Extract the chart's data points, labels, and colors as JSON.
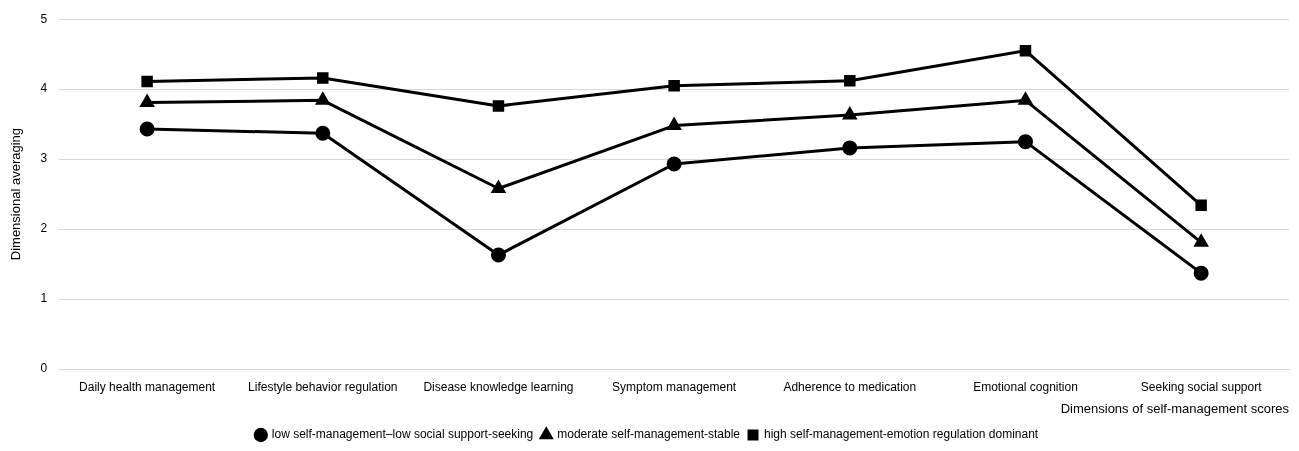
{
  "chart_data": {
    "type": "line",
    "xlabel": "Dimensions of self-management scores",
    "ylabel": "Dimensional averaging",
    "categories": [
      "Daily health management",
      "Lifestyle behavior regulation",
      "Disease knowledge learning",
      "Symptom management",
      "Adherence to medication",
      "Emotional cognition",
      "Seeking social support"
    ],
    "series": [
      {
        "name": "low self-management–low social support-seeking",
        "color": "#000000",
        "marker": "circle",
        "values": [
          3.43,
          3.37,
          1.63,
          2.93,
          3.16,
          3.25,
          1.37
        ]
      },
      {
        "name": "moderate self-management-stable",
        "color": "#000000",
        "marker": "triangle",
        "values": [
          3.81,
          3.84,
          2.58,
          3.48,
          3.63,
          3.84,
          1.81
        ]
      },
      {
        "name": "high self-management-emotion regulation dominant",
        "color": "#000000",
        "marker": "square",
        "values": [
          4.11,
          4.16,
          3.76,
          4.05,
          4.12,
          4.55,
          2.34
        ]
      }
    ],
    "ylim": [
      0,
      5
    ],
    "yticks": [
      0,
      1,
      2,
      3,
      4,
      5
    ],
    "grid": "y",
    "legend": "bottom",
    "line_style": "solid"
  }
}
